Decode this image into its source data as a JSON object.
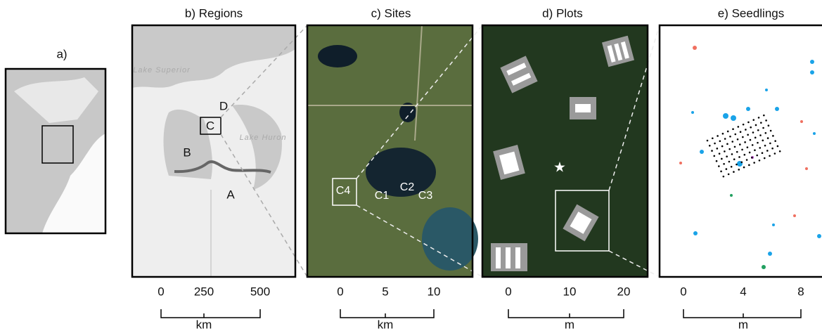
{
  "panels": [
    {
      "title": "a)"
    },
    {
      "title": "b) Regions",
      "labels": [
        "Lake Superior",
        "D",
        "C",
        "B",
        "A",
        "Lake Huron"
      ],
      "scale": {
        "ticks": [
          "0",
          "250",
          "500"
        ],
        "unit": "km"
      }
    },
    {
      "title": "c) Sites",
      "labels": [
        "C4",
        "C1",
        "C2",
        "C3"
      ],
      "scale": {
        "ticks": [
          "0",
          "5",
          "10"
        ],
        "unit": "km"
      }
    },
    {
      "title": "d) Plots",
      "scale": {
        "ticks": [
          "0",
          "10",
          "20"
        ],
        "unit": "m"
      }
    },
    {
      "title": "e) Seedlings",
      "scale": {
        "ticks": [
          "0",
          "4",
          "8"
        ],
        "unit": "m"
      }
    }
  ]
}
